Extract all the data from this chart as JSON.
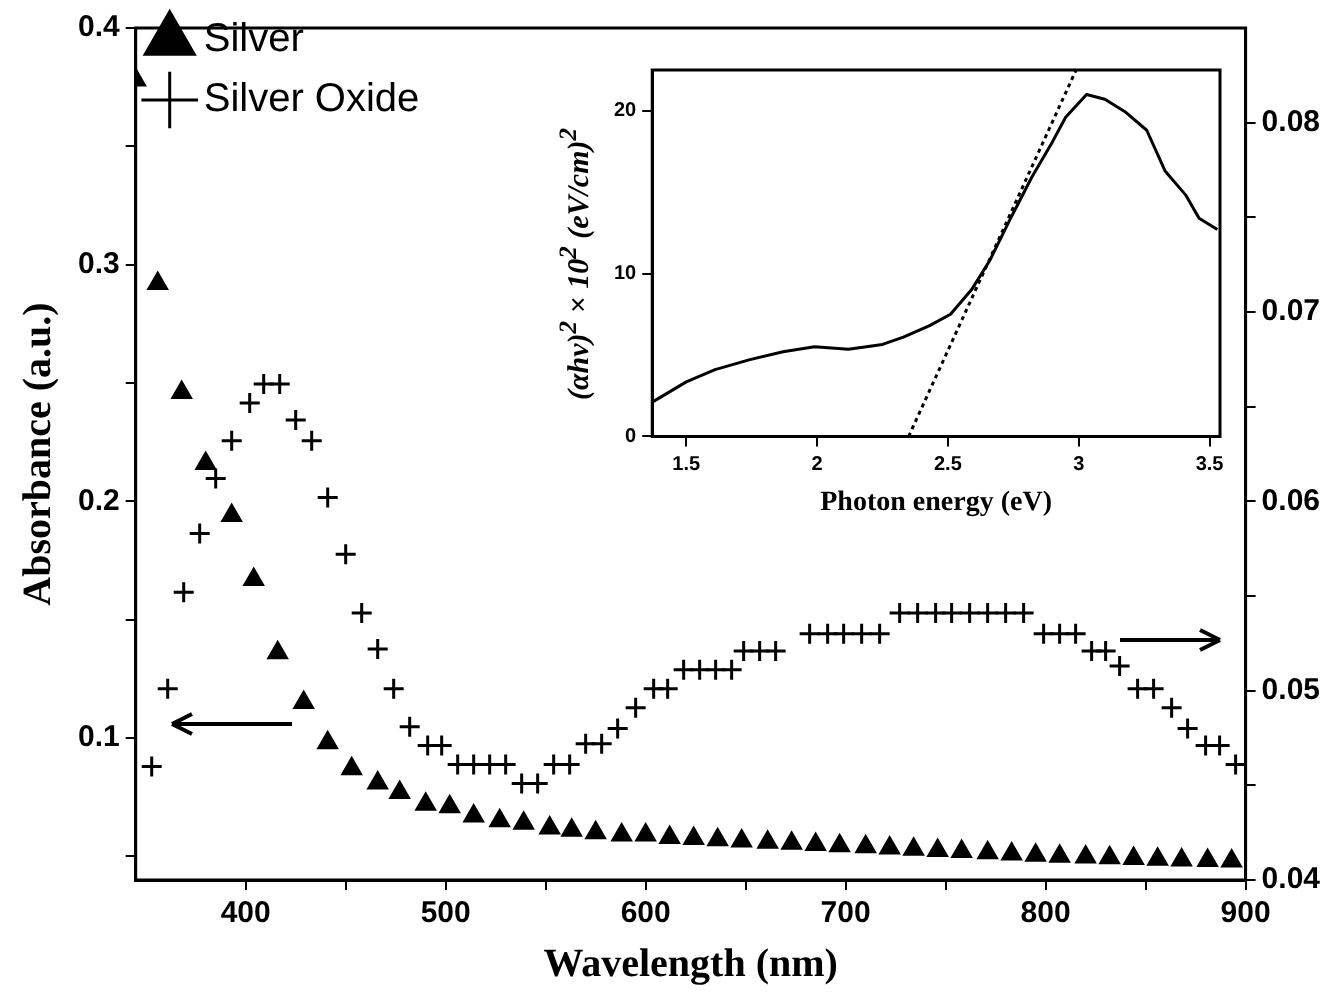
{
  "chart_data": [
    {
      "type": "scatter",
      "xlabel": "Wavelength (nm)",
      "ylabel": "Absorbance (a.u.)",
      "xlim": [
        345,
        900
      ],
      "xticks": [
        400,
        {
          "value": 450,
          "label": null
        },
        500,
        {
          "value": 550,
          "label": null
        },
        600,
        {
          "value": 650,
          "label": null
        },
        700,
        {
          "value": 750,
          "label": null
        },
        800,
        {
          "value": 850,
          "label": null
        },
        900
      ],
      "ylim": [
        0.04,
        0.4
      ],
      "yticks": [
        {
          "value": 0.05,
          "label": null
        },
        0.1,
        {
          "value": 0.15,
          "label": null
        },
        0.2,
        {
          "value": 0.25,
          "label": null
        },
        0.3,
        {
          "value": 0.35,
          "label": null
        },
        0.4
      ],
      "y2lim": [
        0.04,
        0.085
      ],
      "y2ticks": [
        0.04,
        {
          "value": 0.045,
          "label": null
        },
        0.05,
        {
          "value": 0.055,
          "label": null
        },
        0.06,
        {
          "value": 0.065,
          "label": null
        },
        0.07,
        {
          "value": 0.075,
          "label": null
        },
        0.08
      ],
      "grid": false,
      "legend": "top left",
      "series": [
        {
          "name": "Silver",
          "color": "#000000",
          "marker": "triangle",
          "axis": "y",
          "x": [
            345,
            356,
            368,
            380,
            393,
            404,
            416,
            429,
            441,
            453,
            466,
            477,
            490,
            502,
            514,
            527,
            539,
            552,
            563,
            575,
            588,
            600,
            612,
            624,
            636,
            648,
            661,
            673,
            685,
            697,
            710,
            722,
            734,
            746,
            758,
            771,
            783,
            795,
            807,
            820,
            832,
            844,
            856,
            868,
            881,
            893
          ],
          "values": [
            0.378,
            0.292,
            0.246,
            0.216,
            0.194,
            0.167,
            0.136,
            0.115,
            0.098,
            0.087,
            0.081,
            0.077,
            0.072,
            0.071,
            0.067,
            0.065,
            0.064,
            0.062,
            0.061,
            0.06,
            0.059,
            0.059,
            0.058,
            0.0575,
            0.057,
            0.0565,
            0.056,
            0.0555,
            0.055,
            0.0545,
            0.054,
            0.0535,
            0.053,
            0.0525,
            0.052,
            0.0515,
            0.051,
            0.0505,
            0.05,
            0.0497,
            0.0494,
            0.0491,
            0.0488,
            0.0485,
            0.0482,
            0.048
          ]
        },
        {
          "name": "Silver Oxide",
          "color": "#000000",
          "marker": "cross",
          "axis": "y2",
          "x": [
            353,
            361,
            369,
            377,
            385,
            393,
            402,
            409,
            417,
            425,
            433,
            441,
            450,
            458,
            466,
            474,
            482,
            491,
            498,
            506,
            514,
            522,
            530,
            538,
            546,
            554,
            562,
            570,
            578,
            586,
            595,
            604,
            611,
            619,
            627,
            635,
            643,
            649,
            657,
            665,
            682,
            691,
            699,
            708,
            717,
            727,
            736,
            745,
            753,
            762,
            771,
            780,
            789,
            799,
            807,
            815,
            823,
            830,
            837,
            846,
            854,
            863,
            871,
            880,
            887,
            895
          ],
          "values": [
            0.046,
            0.0501,
            0.0552,
            0.0583,
            0.0612,
            0.0632,
            0.0652,
            0.0662,
            0.0662,
            0.0643,
            0.0632,
            0.0602,
            0.0572,
            0.0541,
            0.0522,
            0.0501,
            0.0481,
            0.0471,
            0.0471,
            0.0461,
            0.0461,
            0.0461,
            0.0461,
            0.0451,
            0.0451,
            0.0461,
            0.0461,
            0.0472,
            0.0472,
            0.048,
            0.0491,
            0.0501,
            0.0501,
            0.0511,
            0.0511,
            0.0511,
            0.0511,
            0.0521,
            0.0521,
            0.0521,
            0.053,
            0.053,
            0.053,
            0.053,
            0.053,
            0.0541,
            0.0541,
            0.0541,
            0.0541,
            0.0541,
            0.0541,
            0.0541,
            0.0541,
            0.053,
            0.053,
            0.053,
            0.0521,
            0.0521,
            0.0513,
            0.0501,
            0.0501,
            0.0491,
            0.048,
            0.0471,
            0.0471,
            0.0461
          ]
        }
      ]
    },
    {
      "type": "line",
      "xlabel": "Photon energy (eV)",
      "ylabel": "(αhv)$^{2}$ × 10$^{2}$ (eV/cm)$^{2}$",
      "xlim": [
        1.37,
        3.54
      ],
      "xticks": [
        1.5,
        2.0,
        2.5,
        3.0,
        3.5
      ],
      "ylim": [
        0,
        22.5
      ],
      "yticks": [
        0,
        10,
        20
      ],
      "grid": false,
      "legend": false,
      "series": [
        {
          "color": "#000000",
          "line_style": "solid",
          "x": [
            1.37,
            1.5,
            1.61,
            1.74,
            1.87,
            1.99,
            2.12,
            2.25,
            2.33,
            2.43,
            2.51,
            2.59,
            2.66,
            2.74,
            2.82,
            2.9,
            2.95,
            3.03,
            3.1,
            3.18,
            3.26,
            3.33,
            3.41,
            3.46,
            3.53
          ],
          "values": [
            2.1,
            3.35,
            4.1,
            4.7,
            5.2,
            5.5,
            5.35,
            5.65,
            6.1,
            6.8,
            7.5,
            9.0,
            10.8,
            13.4,
            15.9,
            18.1,
            19.6,
            21.0,
            20.7,
            19.9,
            18.8,
            16.3,
            14.8,
            13.4,
            12.7
          ]
        },
        {
          "type": "line",
          "color": "#000000",
          "line_style": "dotted",
          "x": [
            2.35,
            2.99
          ],
          "values": [
            0,
            22.5
          ]
        }
      ]
    }
  ]
}
